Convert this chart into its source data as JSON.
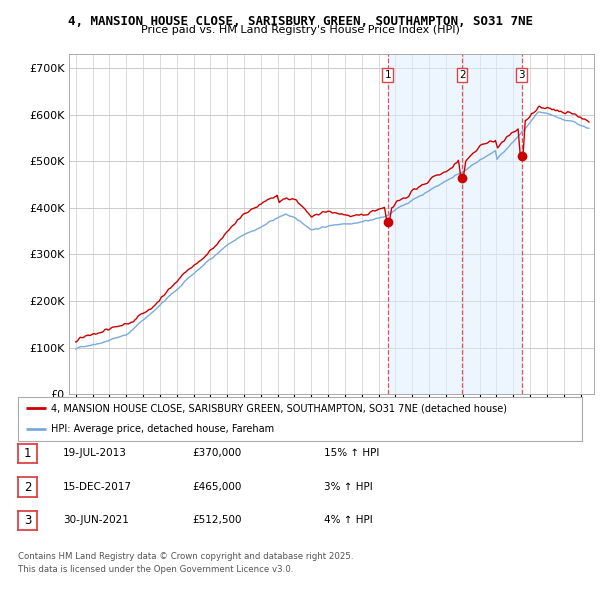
{
  "title_line1": "4, MANSION HOUSE CLOSE, SARISBURY GREEN, SOUTHAMPTON, SO31 7NE",
  "title_line2": "Price paid vs. HM Land Registry's House Price Index (HPI)",
  "background_color": "#ffffff",
  "plot_bg_color": "#ffffff",
  "grid_color": "#cccccc",
  "red_line_color": "#cc0000",
  "blue_line_color": "#7aaadd",
  "blue_fill_color": "#ddeeff",
  "sale_vline_color": "#dd4444",
  "sale_markers": [
    {
      "date_num": 2013.55,
      "price": 370000,
      "label": "1"
    },
    {
      "date_num": 2017.96,
      "price": 465000,
      "label": "2"
    },
    {
      "date_num": 2021.5,
      "price": 512500,
      "label": "3"
    }
  ],
  "legend_items": [
    "4, MANSION HOUSE CLOSE, SARISBURY GREEN, SOUTHAMPTON, SO31 7NE (detached house)",
    "HPI: Average price, detached house, Fareham"
  ],
  "table_rows": [
    [
      "1",
      "19-JUL-2013",
      "£370,000",
      "15% ↑ HPI"
    ],
    [
      "2",
      "15-DEC-2017",
      "£465,000",
      "3% ↑ HPI"
    ],
    [
      "3",
      "30-JUN-2021",
      "£512,500",
      "4% ↑ HPI"
    ]
  ],
  "footer_line1": "Contains HM Land Registry data © Crown copyright and database right 2025.",
  "footer_line2": "This data is licensed under the Open Government Licence v3.0.",
  "ylim": [
    0,
    730000
  ],
  "yticks": [
    0,
    100000,
    200000,
    300000,
    400000,
    500000,
    600000,
    700000
  ],
  "xlim_left": 1994.6,
  "xlim_right": 2025.8
}
